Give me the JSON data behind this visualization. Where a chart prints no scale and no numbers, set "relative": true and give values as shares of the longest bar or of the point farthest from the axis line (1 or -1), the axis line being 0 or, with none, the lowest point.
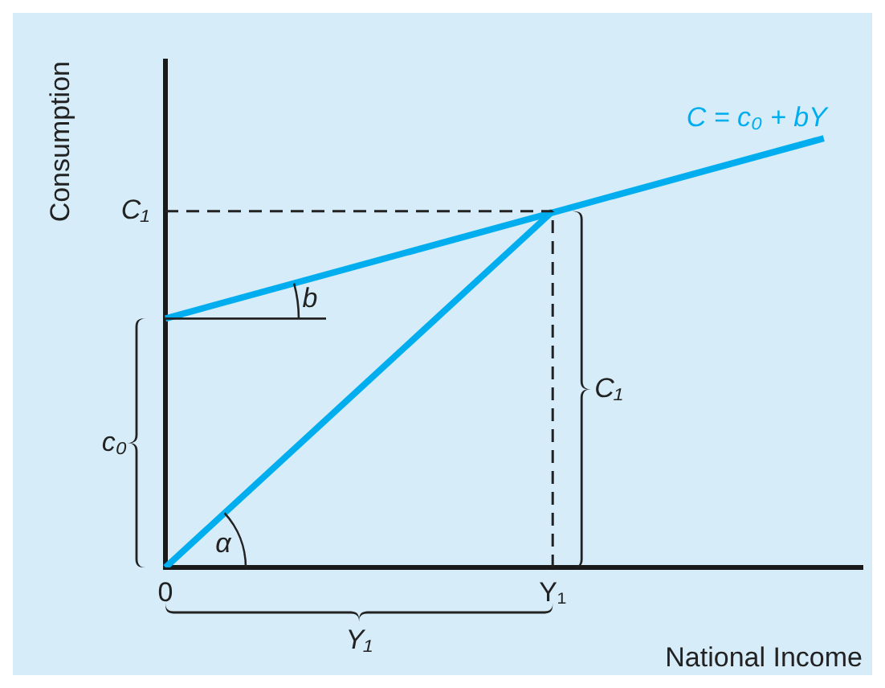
{
  "chart_data": {
    "type": "line",
    "relative": true,
    "xlabel": "National Income",
    "ylabel": "Consumption",
    "categories": [
      "0",
      null,
      null,
      null,
      null,
      null,
      null,
      null,
      null,
      null,
      "Y₁",
      null,
      null,
      null,
      null,
      null,
      null,
      null,
      null
    ],
    "series": [
      {
        "name": "C = c₀ + bY",
        "color": "#00aeef",
        "values": [
          0.58,
          null,
          null,
          null,
          null,
          null,
          null,
          null,
          null,
          null,
          null,
          null,
          null,
          null,
          null,
          null,
          null,
          1,
          null
        ]
      },
      {
        "color": "#00aeef",
        "values": [
          0,
          null,
          null,
          null,
          null,
          null,
          null,
          null,
          null,
          null,
          0.83,
          null,
          null,
          null,
          null,
          null,
          null,
          null,
          null
        ]
      }
    ],
    "ref_lines": [
      {
        "axis": "y",
        "value": 0.83,
        "label": "C₁",
        "line_style": "dashed",
        "color": "#222222"
      },
      {
        "axis": "x",
        "value": "Y₁",
        "label": null,
        "line_style": "dashed",
        "color": "#222222"
      }
    ],
    "annotations": [
      "b",
      "α",
      "c₀",
      "C₁",
      "Y₁"
    ],
    "legend": false,
    "marker": "none",
    "line_style": "solid"
  }
}
